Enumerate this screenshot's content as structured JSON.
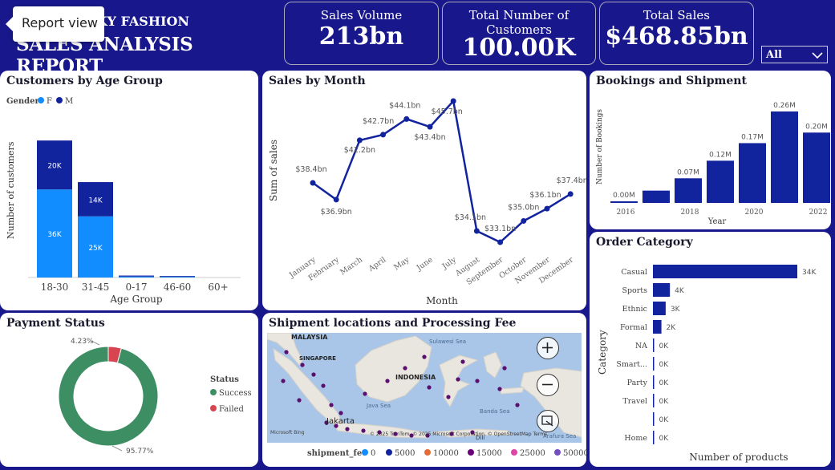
{
  "header": {
    "brand": "KY FASHION",
    "report_title": "SALES ANALYSIS REPORT",
    "tooltip": "Report view"
  },
  "kpis": [
    {
      "label": "Sales Volume",
      "value": "213bn"
    },
    {
      "label": "Total Number of Customers",
      "value": "100.00K"
    },
    {
      "label": "Total Sales",
      "value": "$468.85bn"
    }
  ],
  "filter": {
    "value": "All"
  },
  "age_panel": {
    "title": "Customers by Age Group",
    "legend_title": "Gender",
    "legend": [
      {
        "name": "F",
        "color": "#118dff"
      },
      {
        "name": "M",
        "color": "#12239e"
      }
    ]
  },
  "month_panel": {
    "title": "Sales by Month"
  },
  "bookings_panel": {
    "title": "Bookings and Shipment"
  },
  "payment_panel": {
    "title": "Payment Status",
    "legend_title": "Status",
    "legend": [
      {
        "name": "Success",
        "color": "#3e8e64"
      },
      {
        "name": "Failed",
        "color": "#d64550"
      }
    ]
  },
  "map_panel": {
    "title": "Shipment locations and Processing Fee",
    "labels": {
      "malaysia": "MALAYSIA",
      "singapore": "SINGAPORE",
      "indonesia": "INDONESIA",
      "sulawesi": "Sulawesi Sea",
      "java": "Java Sea",
      "banda": "Banda Sea",
      "jakarta": "Jakarta",
      "dili": "Dili",
      "arafura": "Arafura Sea"
    },
    "bing": "Microsoft Bing",
    "attribution": "© 2025 TomTom, © 2025 Microsoft Corporation, © OpenStreetMap  Terms",
    "legend_title": "shipment_fee",
    "legend": [
      {
        "name": "0",
        "color": "#118dff"
      },
      {
        "name": "5000",
        "color": "#12239e"
      },
      {
        "name": "10000",
        "color": "#e66c37"
      },
      {
        "name": "15000",
        "color": "#6b007b"
      },
      {
        "name": "25000",
        "color": "#e044a7"
      },
      {
        "name": "50000",
        "color": "#744ec2"
      }
    ]
  },
  "order_panel": {
    "title": "Order Category"
  },
  "chart_data": [
    {
      "type": "bar",
      "stacked": true,
      "title": "Customers by Age Group",
      "xlabel": "Age Group",
      "ylabel": "Number of customers",
      "categories": [
        "18-30",
        "31-45",
        "0-17",
        "46-60",
        "60+"
      ],
      "series": [
        {
          "name": "F",
          "color": "#118dff",
          "values": [
            36,
            25,
            0.4,
            0.3,
            0
          ],
          "labels": [
            "36K",
            "25K",
            "",
            "",
            ""
          ]
        },
        {
          "name": "M",
          "color": "#12239e",
          "values": [
            20,
            14,
            0.4,
            0.3,
            0
          ],
          "labels": [
            "20K",
            "14K",
            "",
            "",
            ""
          ]
        }
      ]
    },
    {
      "type": "line",
      "title": "Sales by Month",
      "xlabel": "Month",
      "ylabel": "Sum of sales",
      "categories": [
        "January",
        "February",
        "March",
        "April",
        "May",
        "June",
        "July",
        "August",
        "September",
        "October",
        "November",
        "December"
      ],
      "values": [
        38.4,
        36.9,
        42.2,
        42.7,
        44.1,
        43.4,
        45.7,
        34.1,
        33.1,
        35.0,
        36.1,
        37.4
      ],
      "labels": [
        "$38.4bn",
        "$36.9bn",
        "$42.2bn",
        "$42.7bn",
        "$44.1bn",
        "$43.4bn",
        "$45.7bn",
        "$34.1bn",
        "$33.1bn",
        "$35.0bn",
        "$36.1bn",
        "$37.4bn"
      ]
    },
    {
      "type": "bar",
      "title": "Bookings and Shipment",
      "xlabel": "Year",
      "ylabel": "Number of Bookings",
      "categories": [
        "2016",
        "2017",
        "2018",
        "2019",
        "2020",
        "2021",
        "2022"
      ],
      "tick_labels": [
        "2016",
        "",
        "2018",
        "",
        "2020",
        "",
        "2022"
      ],
      "values": [
        0.0,
        0.035,
        0.07,
        0.12,
        0.17,
        0.26,
        0.2
      ],
      "labels": [
        "0.00M",
        "",
        "0.07M",
        "0.12M",
        "0.17M",
        "0.26M",
        "0.20M"
      ]
    },
    {
      "type": "bar",
      "orientation": "horizontal",
      "title": "Order Category",
      "xlabel": "Number of products",
      "ylabel": "Category",
      "categories": [
        "Casual",
        "Sports",
        "Ethnic",
        "Formal",
        "NA",
        "Smart...",
        "Party",
        "Travel",
        "",
        "Home"
      ],
      "values": [
        34,
        4,
        3,
        2,
        0.2,
        0.2,
        0.2,
        0.2,
        0.2,
        0.2
      ],
      "labels": [
        "34K",
        "4K",
        "3K",
        "2K",
        "0K",
        "0K",
        "0K",
        "0K",
        "0K",
        "0K"
      ]
    },
    {
      "type": "pie",
      "donut": true,
      "title": "Payment Status",
      "categories": [
        "Success",
        "Failed"
      ],
      "values": [
        95.77,
        4.23
      ],
      "labels": [
        "95.77%",
        "4.23%"
      ],
      "colors": [
        "#3e8e64",
        "#d64550"
      ]
    }
  ]
}
